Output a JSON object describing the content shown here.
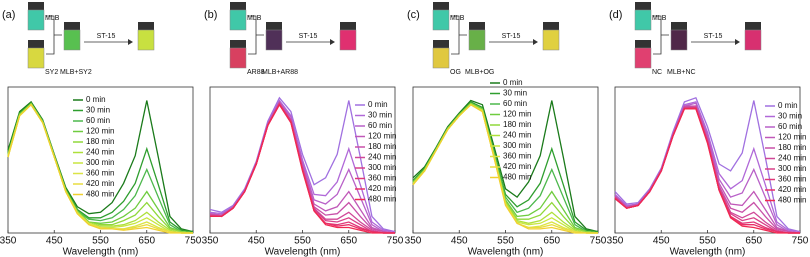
{
  "chart_data": [
    {
      "type": "line",
      "panel": "(a)",
      "xlabel": "Wavelength (nm)",
      "scheme": [
        "MLB",
        "SY2",
        "MLB+SY2",
        "ST-15"
      ],
      "x": [
        350,
        375,
        400,
        425,
        450,
        475,
        500,
        525,
        550,
        575,
        600,
        625,
        650,
        675,
        700,
        725,
        750
      ],
      "xlim": [
        350,
        750
      ],
      "xticks": [
        350,
        450,
        550,
        650,
        750
      ],
      "ylim": [
        0,
        1
      ],
      "series": [
        {
          "name": "0 min",
          "color": "#1a7a1a",
          "values": [
            0.6,
            0.88,
            0.95,
            0.82,
            0.57,
            0.33,
            0.19,
            0.14,
            0.15,
            0.22,
            0.36,
            0.56,
            0.96,
            0.55,
            0.12,
            0.03,
            0.01
          ]
        },
        {
          "name": "30 min",
          "color": "#2e9e2e",
          "values": [
            0.58,
            0.87,
            0.94,
            0.81,
            0.56,
            0.32,
            0.17,
            0.11,
            0.11,
            0.15,
            0.23,
            0.36,
            0.61,
            0.35,
            0.08,
            0.02,
            0.01
          ]
        },
        {
          "name": "60 min",
          "color": "#4cb84c",
          "values": [
            0.57,
            0.86,
            0.94,
            0.81,
            0.56,
            0.31,
            0.16,
            0.1,
            0.09,
            0.11,
            0.17,
            0.27,
            0.46,
            0.26,
            0.06,
            0.01,
            0
          ]
        },
        {
          "name": "120 min",
          "color": "#6fcc3f",
          "values": [
            0.57,
            0.86,
            0.94,
            0.81,
            0.56,
            0.31,
            0.16,
            0.08,
            0.07,
            0.08,
            0.12,
            0.18,
            0.3,
            0.17,
            0.04,
            0.01,
            0
          ]
        },
        {
          "name": "180 min",
          "color": "#90d83a",
          "values": [
            0.56,
            0.86,
            0.93,
            0.8,
            0.55,
            0.31,
            0.15,
            0.08,
            0.06,
            0.06,
            0.09,
            0.13,
            0.22,
            0.12,
            0.03,
            0.01,
            0
          ]
        },
        {
          "name": "240 min",
          "color": "#aee03a",
          "values": [
            0.56,
            0.85,
            0.93,
            0.8,
            0.55,
            0.3,
            0.15,
            0.07,
            0.05,
            0.05,
            0.06,
            0.09,
            0.15,
            0.08,
            0.02,
            0,
            0
          ]
        },
        {
          "name": "300 min",
          "color": "#c8e640",
          "values": [
            0.56,
            0.85,
            0.93,
            0.8,
            0.55,
            0.3,
            0.15,
            0.07,
            0.04,
            0.04,
            0.05,
            0.07,
            0.11,
            0.06,
            0.01,
            0,
            0
          ]
        },
        {
          "name": "360 min",
          "color": "#dbe445",
          "values": [
            0.55,
            0.85,
            0.93,
            0.8,
            0.55,
            0.3,
            0.14,
            0.07,
            0.04,
            0.03,
            0.03,
            0.05,
            0.08,
            0.04,
            0.01,
            0,
            0
          ]
        },
        {
          "name": "420 min",
          "color": "#e8dc40",
          "values": [
            0.55,
            0.85,
            0.93,
            0.8,
            0.55,
            0.3,
            0.14,
            0.06,
            0.04,
            0.03,
            0.03,
            0.04,
            0.06,
            0.03,
            0.01,
            0,
            0
          ]
        },
        {
          "name": "480 min",
          "color": "#f0d030",
          "values": [
            0.55,
            0.85,
            0.93,
            0.8,
            0.55,
            0.3,
            0.14,
            0.06,
            0.03,
            0.03,
            0.02,
            0.03,
            0.04,
            0.02,
            0,
            0,
            0
          ]
        }
      ]
    },
    {
      "type": "line",
      "panel": "(b)",
      "xlabel": "Wavelength (nm)",
      "scheme": [
        "MLB",
        "AR88",
        "MLB+AR88",
        "ST-15"
      ],
      "x": [
        350,
        375,
        400,
        425,
        450,
        475,
        500,
        525,
        550,
        575,
        600,
        625,
        650,
        675,
        700,
        725,
        750
      ],
      "xlim": [
        350,
        750
      ],
      "xticks": [
        350,
        450,
        550,
        650,
        750
      ],
      "ylim": [
        0,
        1
      ],
      "series": [
        {
          "name": "0 min",
          "color": "#a070e0",
          "values": [
            0.17,
            0.15,
            0.2,
            0.32,
            0.52,
            0.81,
            0.98,
            0.88,
            0.57,
            0.35,
            0.4,
            0.57,
            0.96,
            0.55,
            0.12,
            0.03,
            0.01
          ]
        },
        {
          "name": "30 min",
          "color": "#b068d8",
          "values": [
            0.15,
            0.14,
            0.19,
            0.31,
            0.51,
            0.8,
            0.96,
            0.85,
            0.53,
            0.28,
            0.27,
            0.37,
            0.61,
            0.35,
            0.08,
            0.02,
            0.01
          ]
        },
        {
          "name": "60 min",
          "color": "#b860c8",
          "values": [
            0.14,
            0.13,
            0.19,
            0.31,
            0.51,
            0.79,
            0.95,
            0.84,
            0.51,
            0.24,
            0.21,
            0.28,
            0.46,
            0.26,
            0.06,
            0.01,
            0
          ]
        },
        {
          "name": "120 min",
          "color": "#c058b8",
          "values": [
            0.14,
            0.13,
            0.19,
            0.31,
            0.51,
            0.79,
            0.95,
            0.82,
            0.49,
            0.21,
            0.16,
            0.19,
            0.3,
            0.17,
            0.04,
            0.01,
            0
          ]
        },
        {
          "name": "180 min",
          "color": "#c850a8",
          "values": [
            0.13,
            0.13,
            0.18,
            0.3,
            0.5,
            0.79,
            0.94,
            0.82,
            0.48,
            0.19,
            0.13,
            0.14,
            0.22,
            0.12,
            0.03,
            0.01,
            0
          ]
        },
        {
          "name": "240 min",
          "color": "#d04898",
          "values": [
            0.13,
            0.12,
            0.18,
            0.3,
            0.5,
            0.78,
            0.94,
            0.81,
            0.47,
            0.18,
            0.1,
            0.1,
            0.15,
            0.08,
            0.02,
            0,
            0
          ]
        },
        {
          "name": "300 min",
          "color": "#d84088",
          "values": [
            0.13,
            0.12,
            0.18,
            0.3,
            0.5,
            0.78,
            0.94,
            0.81,
            0.46,
            0.17,
            0.09,
            0.08,
            0.11,
            0.06,
            0.01,
            0,
            0
          ]
        },
        {
          "name": "360 min",
          "color": "#e03878",
          "values": [
            0.12,
            0.12,
            0.18,
            0.3,
            0.5,
            0.78,
            0.93,
            0.81,
            0.46,
            0.16,
            0.07,
            0.06,
            0.08,
            0.04,
            0.01,
            0,
            0
          ]
        },
        {
          "name": "420 min",
          "color": "#e83068",
          "values": [
            0.12,
            0.12,
            0.18,
            0.3,
            0.5,
            0.78,
            0.93,
            0.8,
            0.46,
            0.16,
            0.07,
            0.05,
            0.06,
            0.03,
            0.01,
            0,
            0
          ]
        },
        {
          "name": "480 min",
          "color": "#f02850",
          "values": [
            0.12,
            0.12,
            0.18,
            0.3,
            0.5,
            0.78,
            0.93,
            0.8,
            0.45,
            0.16,
            0.06,
            0.04,
            0.04,
            0.02,
            0,
            0,
            0
          ]
        }
      ]
    },
    {
      "type": "line",
      "panel": "(c)",
      "xlabel": "Wavelength (nm)",
      "scheme": [
        "MLB",
        "OG",
        "MLB+OG",
        "ST-15"
      ],
      "x": [
        350,
        375,
        400,
        425,
        450,
        475,
        500,
        525,
        550,
        575,
        600,
        625,
        650,
        675,
        700,
        725,
        750
      ],
      "xlim": [
        350,
        750
      ],
      "xticks": [
        350,
        450,
        550,
        650,
        750
      ],
      "ylim": [
        0,
        1
      ],
      "series": [
        {
          "name": "0 min",
          "color": "#1a7a1a",
          "values": [
            0.4,
            0.48,
            0.62,
            0.77,
            0.87,
            0.96,
            0.93,
            0.63,
            0.32,
            0.26,
            0.37,
            0.56,
            0.96,
            0.55,
            0.12,
            0.03,
            0.01
          ]
        },
        {
          "name": "30 min",
          "color": "#2e9e2e",
          "values": [
            0.38,
            0.47,
            0.61,
            0.76,
            0.86,
            0.95,
            0.91,
            0.6,
            0.28,
            0.19,
            0.24,
            0.36,
            0.61,
            0.35,
            0.08,
            0.02,
            0.01
          ]
        },
        {
          "name": "60 min",
          "color": "#4cb84c",
          "values": [
            0.37,
            0.46,
            0.61,
            0.76,
            0.86,
            0.94,
            0.9,
            0.59,
            0.26,
            0.15,
            0.18,
            0.27,
            0.46,
            0.26,
            0.06,
            0.01,
            0
          ]
        },
        {
          "name": "120 min",
          "color": "#6fcc3f",
          "values": [
            0.37,
            0.46,
            0.61,
            0.76,
            0.86,
            0.94,
            0.9,
            0.57,
            0.24,
            0.12,
            0.13,
            0.18,
            0.3,
            0.17,
            0.04,
            0.01,
            0
          ]
        },
        {
          "name": "180 min",
          "color": "#90d83a",
          "values": [
            0.36,
            0.46,
            0.6,
            0.75,
            0.85,
            0.94,
            0.89,
            0.57,
            0.23,
            0.1,
            0.1,
            0.13,
            0.22,
            0.12,
            0.03,
            0.01,
            0
          ]
        },
        {
          "name": "240 min",
          "color": "#aee03a",
          "values": [
            0.36,
            0.45,
            0.6,
            0.75,
            0.85,
            0.93,
            0.89,
            0.56,
            0.22,
            0.09,
            0.07,
            0.09,
            0.15,
            0.08,
            0.02,
            0,
            0
          ]
        },
        {
          "name": "300 min",
          "color": "#c8e640",
          "values": [
            0.36,
            0.45,
            0.6,
            0.75,
            0.85,
            0.93,
            0.89,
            0.56,
            0.21,
            0.08,
            0.06,
            0.07,
            0.11,
            0.06,
            0.01,
            0,
            0
          ]
        },
        {
          "name": "360 min",
          "color": "#dbe445",
          "values": [
            0.35,
            0.45,
            0.6,
            0.75,
            0.85,
            0.93,
            0.88,
            0.56,
            0.21,
            0.07,
            0.04,
            0.05,
            0.08,
            0.04,
            0.01,
            0,
            0
          ]
        },
        {
          "name": "420 min",
          "color": "#e8dc40",
          "values": [
            0.35,
            0.45,
            0.6,
            0.75,
            0.85,
            0.93,
            0.88,
            0.55,
            0.21,
            0.07,
            0.04,
            0.04,
            0.06,
            0.03,
            0.01,
            0,
            0
          ]
        },
        {
          "name": "480 min",
          "color": "#f0d030",
          "values": [
            0.35,
            0.45,
            0.6,
            0.75,
            0.85,
            0.93,
            0.88,
            0.55,
            0.2,
            0.07,
            0.03,
            0.03,
            0.04,
            0.02,
            0,
            0,
            0
          ]
        }
      ]
    },
    {
      "type": "line",
      "panel": "(d)",
      "xlabel": "Wavelength (nm)",
      "scheme": [
        "MLB",
        "NC",
        "MLB+NC",
        "ST-15"
      ],
      "x": [
        350,
        375,
        400,
        425,
        450,
        475,
        500,
        525,
        550,
        575,
        600,
        625,
        650,
        675,
        700,
        725,
        750
      ],
      "xlim": [
        350,
        750
      ],
      "xticks": [
        350,
        450,
        550,
        650,
        750
      ],
      "ylim": [
        0,
        1
      ],
      "series": [
        {
          "name": "0 min",
          "color": "#a070e0",
          "values": [
            0.3,
            0.21,
            0.22,
            0.32,
            0.47,
            0.73,
            0.95,
            0.98,
            0.77,
            0.5,
            0.45,
            0.58,
            0.96,
            0.55,
            0.12,
            0.03,
            0.01
          ]
        },
        {
          "name": "30 min",
          "color": "#b068d8",
          "values": [
            0.28,
            0.2,
            0.21,
            0.31,
            0.46,
            0.72,
            0.93,
            0.95,
            0.73,
            0.43,
            0.32,
            0.38,
            0.61,
            0.35,
            0.08,
            0.02,
            0.01
          ]
        },
        {
          "name": "60 min",
          "color": "#b860c8",
          "values": [
            0.27,
            0.19,
            0.21,
            0.31,
            0.46,
            0.71,
            0.92,
            0.94,
            0.71,
            0.39,
            0.26,
            0.29,
            0.46,
            0.26,
            0.06,
            0.01,
            0
          ]
        },
        {
          "name": "120 min",
          "color": "#c058b8",
          "values": [
            0.27,
            0.19,
            0.21,
            0.31,
            0.46,
            0.71,
            0.92,
            0.92,
            0.69,
            0.36,
            0.21,
            0.2,
            0.3,
            0.17,
            0.04,
            0.01,
            0
          ]
        },
        {
          "name": "180 min",
          "color": "#c850a8",
          "values": [
            0.26,
            0.19,
            0.2,
            0.3,
            0.45,
            0.71,
            0.91,
            0.92,
            0.68,
            0.34,
            0.18,
            0.15,
            0.22,
            0.12,
            0.03,
            0.01,
            0
          ]
        },
        {
          "name": "240 min",
          "color": "#d04898",
          "values": [
            0.26,
            0.18,
            0.2,
            0.3,
            0.45,
            0.7,
            0.91,
            0.91,
            0.67,
            0.33,
            0.15,
            0.11,
            0.15,
            0.08,
            0.02,
            0,
            0
          ]
        },
        {
          "name": "300 min",
          "color": "#d84088",
          "values": [
            0.26,
            0.18,
            0.2,
            0.3,
            0.45,
            0.7,
            0.91,
            0.91,
            0.66,
            0.32,
            0.14,
            0.09,
            0.11,
            0.06,
            0.01,
            0,
            0
          ]
        },
        {
          "name": "360 min",
          "color": "#e03878",
          "values": [
            0.25,
            0.18,
            0.2,
            0.3,
            0.45,
            0.7,
            0.9,
            0.91,
            0.66,
            0.31,
            0.12,
            0.07,
            0.08,
            0.04,
            0.01,
            0,
            0
          ]
        },
        {
          "name": "420 min",
          "color": "#e83068",
          "values": [
            0.25,
            0.18,
            0.2,
            0.3,
            0.45,
            0.7,
            0.9,
            0.9,
            0.66,
            0.31,
            0.12,
            0.06,
            0.06,
            0.03,
            0.01,
            0,
            0
          ]
        },
        {
          "name": "480 min",
          "color": "#f02850",
          "values": [
            0.25,
            0.18,
            0.2,
            0.3,
            0.45,
            0.7,
            0.9,
            0.9,
            0.65,
            0.31,
            0.11,
            0.05,
            0.04,
            0.02,
            0,
            0,
            0
          ]
        }
      ]
    }
  ]
}
